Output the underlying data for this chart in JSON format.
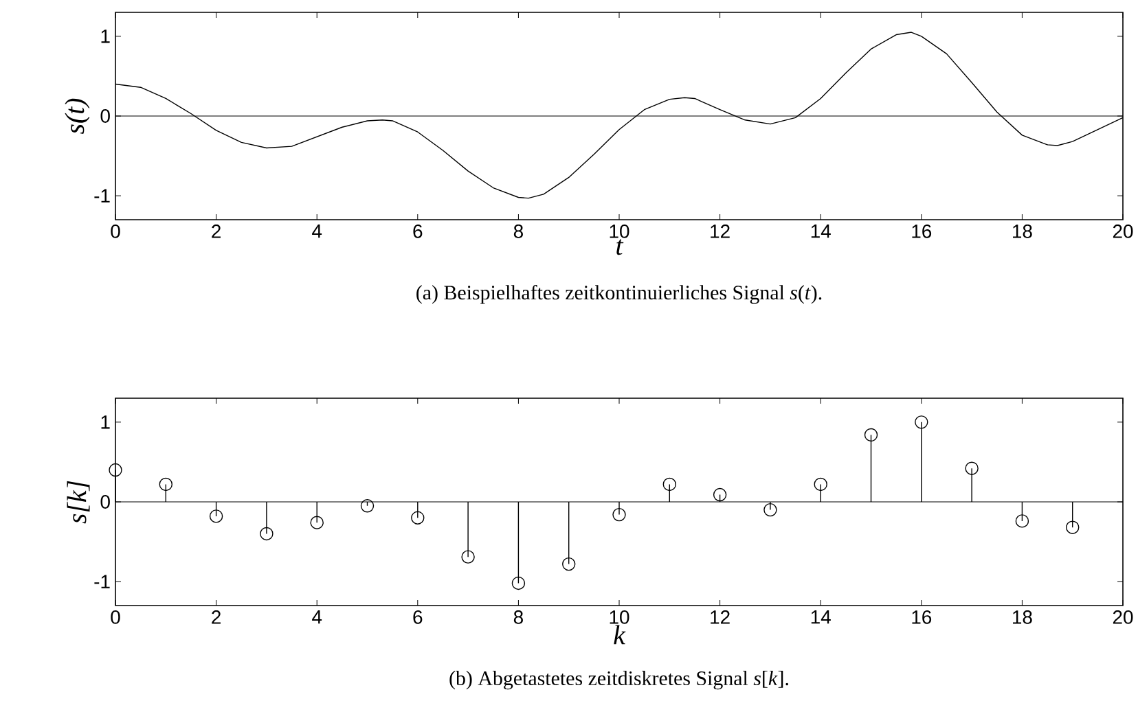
{
  "chart_data": [
    {
      "type": "line",
      "xlabel": "t",
      "ylabel": "s(t)",
      "annotations": [
        "(a) Beispielhaftes zeitkontinuierliches Signal *s*(*t*)."
      ],
      "series": [
        {
          "color": "#000000",
          "x": [
            0,
            0.5,
            1,
            1.5,
            2,
            2.5,
            3,
            3.5,
            4,
            4.5,
            5,
            5.3,
            5.5,
            6,
            6.5,
            7,
            7.5,
            8,
            8.2,
            8.5,
            9,
            9.5,
            10,
            10.5,
            11,
            11.3,
            11.5,
            12,
            12.5,
            13,
            13.5,
            14,
            14.5,
            15,
            15.5,
            15.8,
            16,
            16.5,
            17,
            17.5,
            18,
            18.5,
            18.7,
            19,
            19.5,
            20
          ],
          "values": [
            0.4,
            0.36,
            0.22,
            0.03,
            -0.18,
            -0.33,
            -0.4,
            -0.38,
            -0.26,
            -0.14,
            -0.06,
            -0.05,
            -0.06,
            -0.2,
            -0.43,
            -0.69,
            -0.9,
            -1.02,
            -1.03,
            -0.98,
            -0.77,
            -0.48,
            -0.17,
            0.08,
            0.21,
            0.23,
            0.22,
            0.08,
            -0.05,
            -0.1,
            -0.02,
            0.22,
            0.54,
            0.84,
            1.02,
            1.05,
            1.0,
            0.78,
            0.42,
            0.05,
            -0.24,
            -0.36,
            -0.37,
            -0.32,
            -0.17,
            -0.02
          ]
        }
      ],
      "xlim": [
        0,
        20
      ],
      "xticks": [
        0,
        2,
        4,
        6,
        8,
        10,
        12,
        14,
        16,
        18,
        20
      ],
      "ylim": [
        -1.3,
        1.3
      ],
      "yticks": [
        -1,
        0,
        1
      ],
      "ref_lines": [
        {
          "axis": "y",
          "value": 0,
          "color": "#000000"
        }
      ],
      "line_style": "solid"
    },
    {
      "type": "lollipop",
      "xlabel": "k",
      "ylabel": "s[k]",
      "annotations": [
        "(b) Abgetastetes zeitdiskretes Signal *s*[*k*]."
      ],
      "series": [
        {
          "color": "#000000",
          "x": [
            0,
            1,
            2,
            3,
            4,
            5,
            6,
            7,
            8,
            9,
            10,
            11,
            12,
            13,
            14,
            15,
            16,
            17,
            18,
            19
          ],
          "values": [
            0.4,
            0.22,
            -0.18,
            -0.4,
            -0.26,
            -0.05,
            -0.2,
            -0.69,
            -1.02,
            -0.78,
            -0.16,
            0.22,
            0.09,
            -0.1,
            0.22,
            0.84,
            1.0,
            0.42,
            -0.24,
            -0.32
          ]
        }
      ],
      "xlim": [
        0,
        20
      ],
      "xticks": [
        0,
        2,
        4,
        6,
        8,
        10,
        12,
        14,
        16,
        18,
        20
      ],
      "ylim": [
        -1.3,
        1.3
      ],
      "yticks": [
        -1,
        0,
        1
      ],
      "ref_lines": [
        {
          "axis": "y",
          "value": 0,
          "color": "#000000"
        }
      ],
      "marker": "circle"
    }
  ]
}
